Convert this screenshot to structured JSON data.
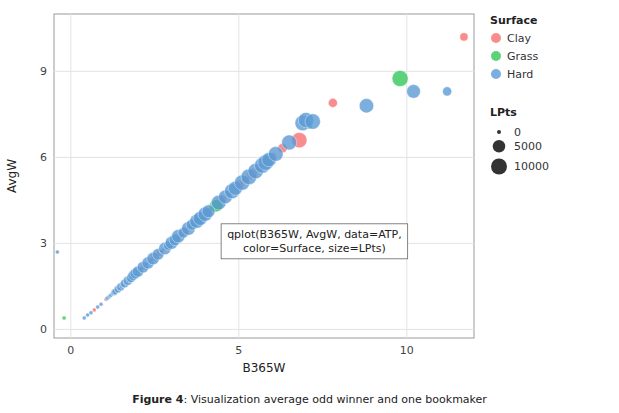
{
  "chart_data": {
    "type": "scatter",
    "xlabel": "B365W",
    "ylabel": "AvgW",
    "caption": [
      "Figure 4",
      ": Visualization average odd winner and one bookmaker"
    ],
    "annotations": [
      {
        "text": "qplot(B365W, AvgW, data=ATP,\ncolor=Surface, size=LPts)"
      }
    ],
    "xlim": [
      -0.5,
      12
    ],
    "ylim": [
      -0.3,
      11
    ],
    "xticks": [
      0,
      5,
      10
    ],
    "yticks": [
      0,
      3,
      6,
      9
    ],
    "grid": true,
    "legend": "right",
    "legend_title": "Surface",
    "size_legend": {
      "title": "LPts",
      "values": [
        0,
        5000,
        10000
      ]
    },
    "series": [
      {
        "name": "Clay",
        "color": "#f87070",
        "x": [
          1.05,
          1.12,
          1.22,
          1.28,
          1.34,
          1.38,
          1.46,
          1.52,
          1.58,
          1.65,
          1.72,
          1.77,
          1.88,
          1.95,
          2.05,
          2.2,
          2.35,
          2.5,
          2.65,
          2.75,
          2.85,
          2.95,
          3.05,
          3.15,
          3.3,
          3.4,
          3.55,
          3.7,
          3.9,
          4.05,
          4.2,
          4.5,
          4.7,
          5.0,
          5.2,
          5.4,
          5.6,
          5.85,
          6.0,
          6.3,
          6.8,
          7.8,
          11.7,
          0.7
        ],
        "values": [
          1.05,
          1.12,
          1.22,
          1.28,
          1.34,
          1.38,
          1.46,
          1.52,
          1.58,
          1.65,
          1.72,
          1.77,
          1.9,
          1.97,
          2.07,
          2.22,
          2.37,
          2.52,
          2.67,
          2.77,
          2.87,
          2.97,
          3.07,
          3.2,
          3.32,
          3.42,
          3.6,
          3.72,
          3.92,
          4.07,
          4.22,
          4.52,
          4.72,
          5.02,
          5.22,
          5.42,
          5.62,
          5.87,
          6.02,
          6.32,
          6.6,
          7.9,
          10.2,
          0.68
        ],
        "sizes": [
          0,
          0,
          0,
          300,
          0,
          0,
          0,
          400,
          0,
          0,
          0,
          0,
          0,
          400,
          0,
          800,
          0,
          1200,
          400,
          0,
          0,
          400,
          0,
          1200,
          0,
          1500,
          0,
          1800,
          2000,
          2200,
          0,
          2500,
          400,
          3000,
          800,
          3500,
          1200,
          4000,
          1500,
          2000,
          9000,
          1800,
          1200,
          0
        ]
      },
      {
        "name": "Grass",
        "color": "#34c759",
        "x": [
          3.8,
          4.3,
          4.35,
          7.1,
          9.8,
          -0.2
        ],
        "values": [
          3.75,
          4.3,
          4.32,
          7.1,
          8.75,
          0.4
        ],
        "sizes": [
          1500,
          4500,
          4500,
          400,
          10000,
          0
        ]
      },
      {
        "name": "Hard",
        "color": "#5b9bd5",
        "x": [
          1.08,
          1.1,
          1.14,
          1.16,
          1.18,
          1.2,
          1.24,
          1.26,
          1.3,
          1.32,
          1.36,
          1.4,
          1.42,
          1.44,
          1.48,
          1.5,
          1.54,
          1.56,
          1.6,
          1.62,
          1.67,
          1.7,
          1.75,
          1.8,
          1.82,
          1.85,
          1.9,
          1.92,
          1.97,
          2.0,
          2.1,
          2.15,
          2.25,
          2.3,
          2.4,
          2.45,
          2.55,
          2.6,
          2.7,
          2.8,
          2.9,
          3.0,
          3.1,
          3.2,
          3.35,
          3.5,
          3.6,
          3.75,
          3.85,
          4.0,
          4.1,
          4.4,
          4.6,
          4.8,
          4.9,
          5.1,
          5.3,
          5.5,
          5.7,
          5.8,
          5.9,
          6.1,
          6.5,
          6.9,
          7.0,
          7.2,
          8.8,
          10.2,
          11.2,
          -0.4,
          0.4,
          0.5,
          0.6,
          0.8,
          0.9
        ],
        "values": [
          1.08,
          1.1,
          1.14,
          1.16,
          1.18,
          1.2,
          1.24,
          1.26,
          1.3,
          1.32,
          1.36,
          1.4,
          1.42,
          1.44,
          1.48,
          1.5,
          1.54,
          1.56,
          1.6,
          1.62,
          1.67,
          1.7,
          1.75,
          1.8,
          1.82,
          1.88,
          1.92,
          1.95,
          2.0,
          2.02,
          2.12,
          2.17,
          2.27,
          2.32,
          2.42,
          2.47,
          2.57,
          2.62,
          2.72,
          2.82,
          2.92,
          3.02,
          3.12,
          3.25,
          3.37,
          3.52,
          3.65,
          3.77,
          3.87,
          4.02,
          4.12,
          4.42,
          4.62,
          4.82,
          4.92,
          5.12,
          5.32,
          5.52,
          5.72,
          5.82,
          5.92,
          6.12,
          6.52,
          7.2,
          7.3,
          7.25,
          7.8,
          8.3,
          8.3,
          2.7,
          0.4,
          0.5,
          0.58,
          0.78,
          0.88
        ],
        "sizes": [
          0,
          0,
          0,
          0,
          0,
          0,
          0,
          0,
          400,
          300,
          0,
          800,
          0,
          0,
          1000,
          0,
          0,
          0,
          1500,
          0,
          0,
          2000,
          800,
          2000,
          0,
          2500,
          0,
          3000,
          0,
          3500,
          0,
          4000,
          0,
          4500,
          0,
          5000,
          0,
          4000,
          0,
          5000,
          2000,
          5500,
          4000,
          6000,
          3000,
          6500,
          3500,
          7000,
          7000,
          7500,
          5500,
          8000,
          6500,
          8500,
          7000,
          9000,
          9500,
          9000,
          9500,
          9500,
          7500,
          8000,
          8500,
          9000,
          9000,
          9000,
          7500,
          6500,
          1800,
          0,
          0,
          0,
          0,
          0,
          0
        ]
      }
    ]
  }
}
